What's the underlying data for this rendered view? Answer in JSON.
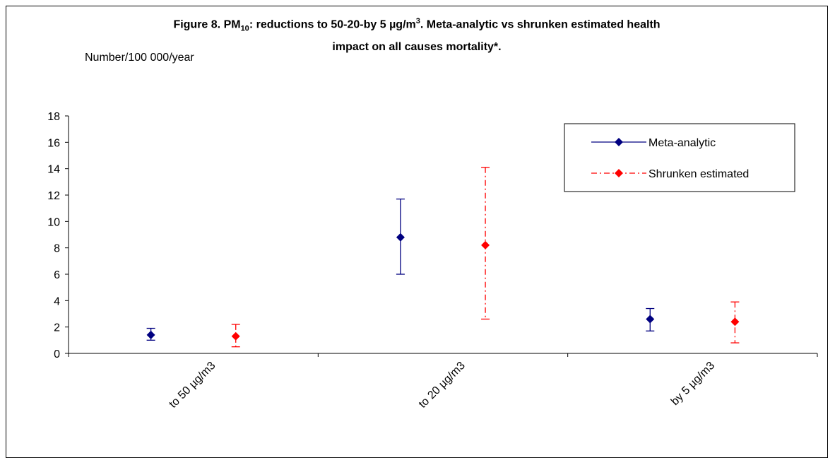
{
  "title": {
    "prefix": "Figure 8. PM",
    "prefix_sub": "10",
    "middle": ": reductions to 50-20-by 5 µg/m",
    "middle_sup": "3",
    "suffix": ". Meta-analytic vs shrunken estimated health",
    "line2": "impact on all causes mortality*."
  },
  "chart_data": {
    "type": "scatter",
    "ylabel": "Number/100 000/year",
    "xlabel": "",
    "ylim": [
      0,
      18
    ],
    "yticks": [
      0,
      2,
      4,
      6,
      8,
      10,
      12,
      14,
      16,
      18
    ],
    "grid": false,
    "legend_position": "top-right",
    "categories": [
      "to 50 µg/m3",
      "to 20 µg/m3",
      "by 5 µg/m3"
    ],
    "series": [
      {
        "name": "Meta-analytic",
        "color": "#000080",
        "line_style": "solid",
        "marker": "diamond",
        "values": [
          1.4,
          8.8,
          2.6
        ],
        "lower": [
          1.0,
          6.0,
          1.7
        ],
        "upper": [
          1.9,
          11.7,
          3.4
        ]
      },
      {
        "name": "Shrunken estimated",
        "color": "#ff0000",
        "line_style": "dash-dot",
        "marker": "diamond",
        "values": [
          1.3,
          8.2,
          2.4
        ],
        "lower": [
          0.5,
          2.6,
          0.8
        ],
        "upper": [
          2.2,
          14.1,
          3.9
        ]
      }
    ]
  }
}
